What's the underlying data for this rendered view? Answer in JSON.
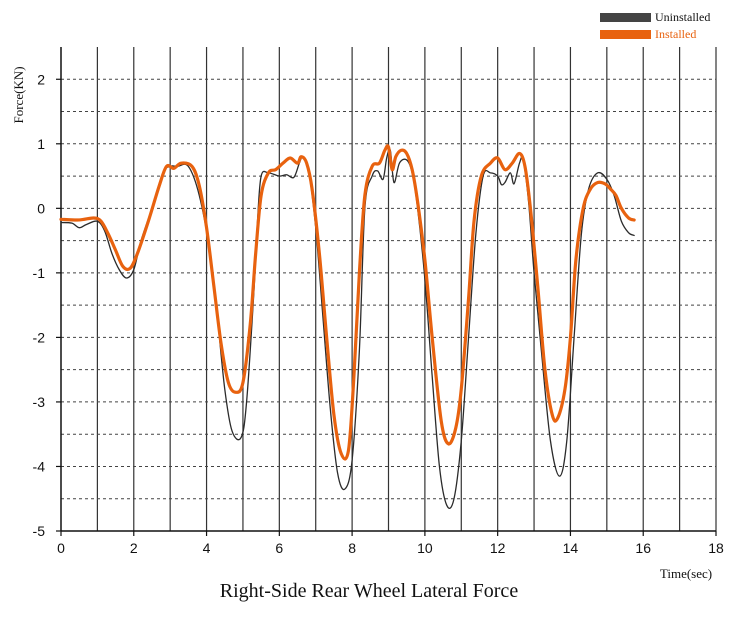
{
  "chart_data": {
    "type": "line",
    "title": "Right-Side Rear Wheel Lateral Force",
    "xlabel": "Time(sec)",
    "ylabel": "Force(KN)",
    "xlim": [
      0,
      18
    ],
    "ylim": [
      -5,
      2.5
    ],
    "x_ticks": [
      0,
      2,
      4,
      6,
      8,
      10,
      12,
      14,
      16,
      18
    ],
    "y_ticks": [
      2,
      1,
      0,
      -1,
      -2,
      -3,
      -4,
      -5
    ],
    "grid": "on",
    "legend_position": "top-right",
    "series": [
      {
        "name": "Uninstalled",
        "color": "#2b2b2b",
        "points": [
          [
            0,
            -0.22
          ],
          [
            0.3,
            -0.23
          ],
          [
            0.5,
            -0.3
          ],
          [
            0.7,
            -0.25
          ],
          [
            1.0,
            -0.2
          ],
          [
            1.2,
            -0.35
          ],
          [
            1.4,
            -0.7
          ],
          [
            1.6,
            -0.95
          ],
          [
            1.8,
            -1.08
          ],
          [
            2.0,
            -0.95
          ],
          [
            2.2,
            -0.5
          ],
          [
            2.5,
            0.0
          ],
          [
            2.8,
            0.55
          ],
          [
            3.0,
            0.65
          ],
          [
            3.2,
            0.65
          ],
          [
            3.5,
            0.65
          ],
          [
            3.8,
            0.2
          ],
          [
            4.1,
            -0.7
          ],
          [
            4.3,
            -1.7
          ],
          [
            4.5,
            -2.8
          ],
          [
            4.7,
            -3.45
          ],
          [
            4.95,
            -3.55
          ],
          [
            5.1,
            -3.0
          ],
          [
            5.3,
            -1.3
          ],
          [
            5.4,
            -0.2
          ],
          [
            5.5,
            0.5
          ],
          [
            5.7,
            0.55
          ],
          [
            6.0,
            0.5
          ],
          [
            6.2,
            0.52
          ],
          [
            6.4,
            0.48
          ],
          [
            6.55,
            0.7
          ],
          [
            6.65,
            0.8
          ],
          [
            6.8,
            0.6
          ],
          [
            7.0,
            -0.3
          ],
          [
            7.2,
            -1.7
          ],
          [
            7.4,
            -3.1
          ],
          [
            7.6,
            -4.1
          ],
          [
            7.8,
            -4.35
          ],
          [
            8.0,
            -3.9
          ],
          [
            8.2,
            -2.2
          ],
          [
            8.35,
            0.0
          ],
          [
            8.55,
            0.5
          ],
          [
            8.7,
            0.58
          ],
          [
            8.85,
            0.45
          ],
          [
            8.95,
            0.78
          ],
          [
            9.05,
            0.9
          ],
          [
            9.15,
            0.4
          ],
          [
            9.3,
            0.7
          ],
          [
            9.5,
            0.75
          ],
          [
            9.65,
            0.55
          ],
          [
            9.8,
            0.0
          ],
          [
            10.0,
            -1.1
          ],
          [
            10.2,
            -2.6
          ],
          [
            10.4,
            -4.0
          ],
          [
            10.6,
            -4.6
          ],
          [
            10.8,
            -4.5
          ],
          [
            11.0,
            -3.6
          ],
          [
            11.2,
            -2.0
          ],
          [
            11.4,
            -0.4
          ],
          [
            11.6,
            0.5
          ],
          [
            11.8,
            0.55
          ],
          [
            12.0,
            0.5
          ],
          [
            12.1,
            0.37
          ],
          [
            12.2,
            0.4
          ],
          [
            12.35,
            0.55
          ],
          [
            12.45,
            0.38
          ],
          [
            12.6,
            0.7
          ],
          [
            12.7,
            0.75
          ],
          [
            12.85,
            0.1
          ],
          [
            13.0,
            -1.0
          ],
          [
            13.2,
            -2.2
          ],
          [
            13.45,
            -3.6
          ],
          [
            13.7,
            -4.15
          ],
          [
            13.9,
            -3.6
          ],
          [
            14.1,
            -2.0
          ],
          [
            14.3,
            -0.4
          ],
          [
            14.5,
            0.3
          ],
          [
            14.75,
            0.55
          ],
          [
            15.0,
            0.45
          ],
          [
            15.2,
            0.2
          ],
          [
            15.4,
            -0.2
          ],
          [
            15.6,
            -0.38
          ],
          [
            15.75,
            -0.42
          ]
        ]
      },
      {
        "name": "Installed",
        "color": "#e8620f",
        "points": [
          [
            0,
            -0.17
          ],
          [
            0.5,
            -0.18
          ],
          [
            0.9,
            -0.15
          ],
          [
            1.1,
            -0.2
          ],
          [
            1.3,
            -0.4
          ],
          [
            1.5,
            -0.65
          ],
          [
            1.7,
            -0.9
          ],
          [
            1.9,
            -0.93
          ],
          [
            2.1,
            -0.7
          ],
          [
            2.4,
            -0.2
          ],
          [
            2.7,
            0.35
          ],
          [
            2.9,
            0.65
          ],
          [
            3.1,
            0.62
          ],
          [
            3.3,
            0.7
          ],
          [
            3.6,
            0.65
          ],
          [
            3.8,
            0.35
          ],
          [
            4.0,
            -0.3
          ],
          [
            4.2,
            -1.2
          ],
          [
            4.4,
            -2.1
          ],
          [
            4.6,
            -2.7
          ],
          [
            4.8,
            -2.85
          ],
          [
            5.0,
            -2.7
          ],
          [
            5.2,
            -1.8
          ],
          [
            5.35,
            -0.7
          ],
          [
            5.5,
            0.2
          ],
          [
            5.7,
            0.55
          ],
          [
            5.9,
            0.6
          ],
          [
            6.1,
            0.7
          ],
          [
            6.3,
            0.78
          ],
          [
            6.5,
            0.7
          ],
          [
            6.6,
            0.8
          ],
          [
            6.75,
            0.7
          ],
          [
            6.9,
            0.3
          ],
          [
            7.1,
            -0.7
          ],
          [
            7.3,
            -2.0
          ],
          [
            7.5,
            -3.2
          ],
          [
            7.7,
            -3.8
          ],
          [
            7.9,
            -3.75
          ],
          [
            8.05,
            -2.6
          ],
          [
            8.2,
            -1.0
          ],
          [
            8.35,
            0.2
          ],
          [
            8.55,
            0.65
          ],
          [
            8.75,
            0.7
          ],
          [
            8.9,
            0.9
          ],
          [
            9.0,
            0.95
          ],
          [
            9.1,
            0.6
          ],
          [
            9.2,
            0.8
          ],
          [
            9.35,
            0.9
          ],
          [
            9.5,
            0.85
          ],
          [
            9.65,
            0.6
          ],
          [
            9.8,
            0.1
          ],
          [
            10.0,
            -0.8
          ],
          [
            10.2,
            -2.0
          ],
          [
            10.45,
            -3.3
          ],
          [
            10.65,
            -3.65
          ],
          [
            10.85,
            -3.4
          ],
          [
            11.0,
            -2.8
          ],
          [
            11.2,
            -1.4
          ],
          [
            11.35,
            -0.2
          ],
          [
            11.55,
            0.5
          ],
          [
            11.8,
            0.7
          ],
          [
            12.0,
            0.78
          ],
          [
            12.2,
            0.6
          ],
          [
            12.4,
            0.7
          ],
          [
            12.6,
            0.85
          ],
          [
            12.75,
            0.65
          ],
          [
            12.9,
            0.0
          ],
          [
            13.1,
            -1.2
          ],
          [
            13.3,
            -2.5
          ],
          [
            13.5,
            -3.2
          ],
          [
            13.65,
            -3.25
          ],
          [
            13.85,
            -2.8
          ],
          [
            14.0,
            -2.0
          ],
          [
            14.15,
            -0.8
          ],
          [
            14.35,
            0.0
          ],
          [
            14.55,
            0.3
          ],
          [
            14.75,
            0.4
          ],
          [
            14.95,
            0.38
          ],
          [
            15.1,
            0.3
          ],
          [
            15.25,
            0.2
          ],
          [
            15.4,
            0.0
          ],
          [
            15.6,
            -0.15
          ],
          [
            15.75,
            -0.18
          ]
        ]
      }
    ]
  }
}
